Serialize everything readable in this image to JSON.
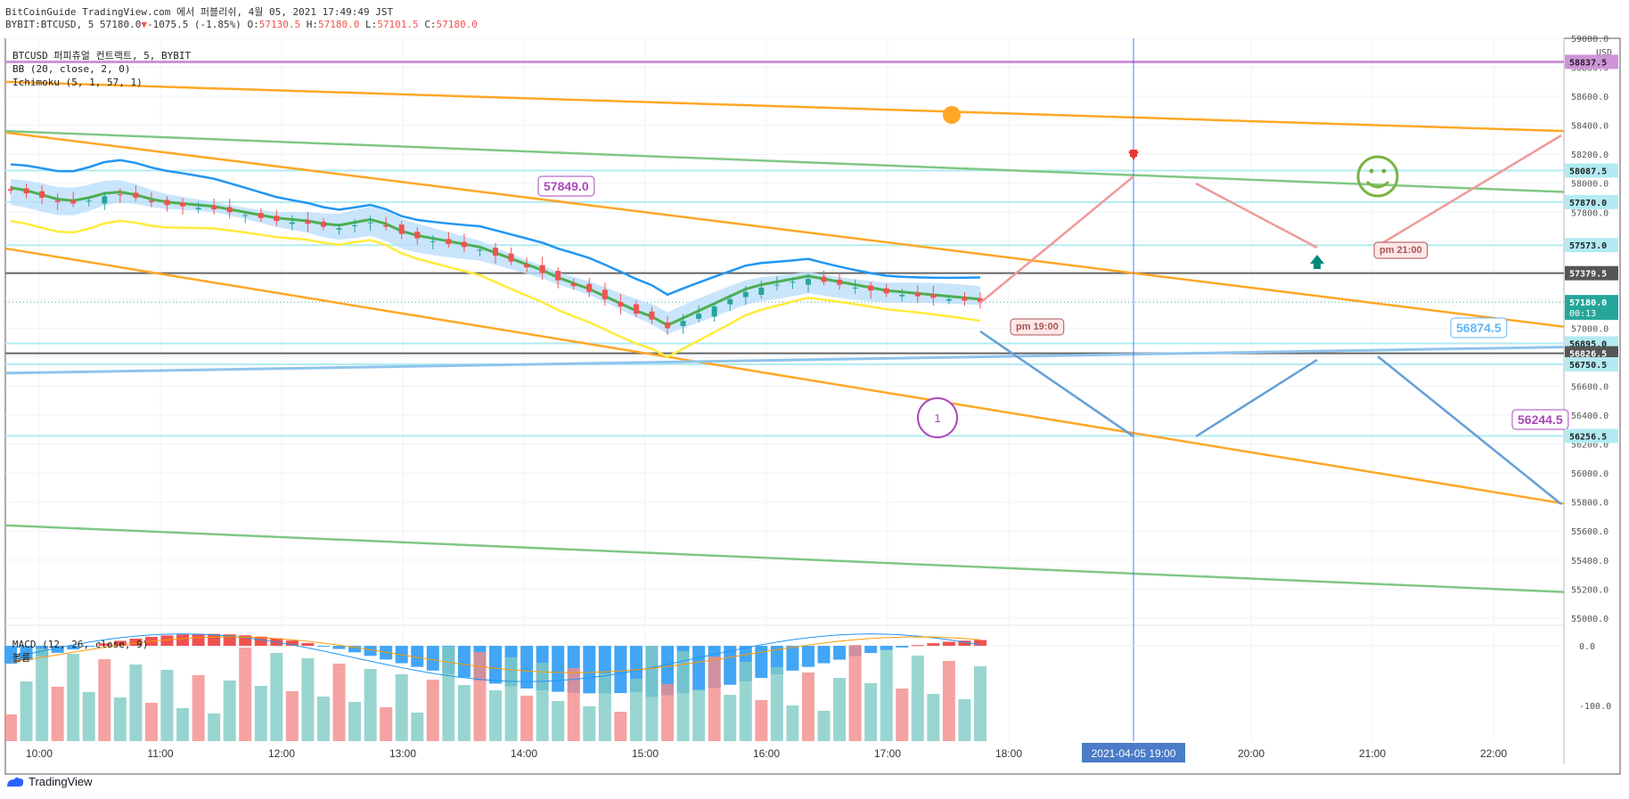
{
  "header": {
    "line1": "BitCoinGuide TradingView.com 에서 퍼블리쉬, 4월 05, 2021 17:49:49 JST",
    "symbol": "BYBIT:BTCUSD, 5 57180.0",
    "change": "-1075.5 (-1.85%)",
    "o_label": "O:",
    "o_value": "57130.5",
    "h_label": "H:",
    "h_value": "57180.0",
    "l_label": "L:",
    "l_value": "57101.5",
    "c_label": "C:",
    "c_value": "57180.0"
  },
  "legend": {
    "title": "BTCUSD 퍼피츄얼 컨트랙트, 5, BYBIT",
    "bb": "BB (20, close, 2, 0)",
    "ichimoku": "Ichimoku (5, 1, 57, 1)"
  },
  "macd_legend": {
    "title": "MACD (12, 26, close, 9)",
    "volume": "볼륨"
  },
  "footer": {
    "brand": "TradingView"
  },
  "colors": {
    "up": "#26a69a",
    "down": "#ef5350",
    "bb_upper": "#2196f3",
    "bb_lower": "#ffeb3b",
    "basis": "#4caf50",
    "orange": "#ffa726",
    "green_line": "#81c784",
    "marker_purple": "#ab47bc",
    "projection_up": "#ef9a9a",
    "projection_down": "#64a0d8"
  },
  "axis": {
    "usd": "USD"
  },
  "annotations": {
    "label_57849": "57849.0",
    "label_56874": "56874.5",
    "label_56244": "56244.5",
    "pm19": "pm 19:00",
    "pm21": "pm 21:00",
    "bubble_1": "1",
    "crosshair_date": "2021-04-05  19:00"
  },
  "chart_data": {
    "type": "candlestick",
    "ylim": [
      54950,
      59000
    ],
    "y_ticks": [
      55000,
      55200,
      55400,
      55600,
      55800,
      56000,
      56200,
      56400,
      56600,
      56800,
      57000,
      57200,
      57400,
      57600,
      57800,
      58000,
      58200,
      58400,
      58600,
      58800,
      59000
    ],
    "y_tick_labels": [
      "55000.0",
      "55200.0",
      "55400.0",
      "55600.0",
      "55800.0",
      "56000.0",
      "56200.0",
      "56400.0",
      "56600.0",
      "56800.0",
      "57000.0",
      "57200.0",
      "57400.0",
      "57600.0",
      "57800.0",
      "58000.0",
      "58200.0",
      "58400.0",
      "58600.0",
      "58800.0",
      "59000.0"
    ],
    "x_ticks": [
      "10:00",
      "11:00",
      "12:00",
      "13:00",
      "14:00",
      "15:00",
      "16:00",
      "17:00",
      "18:00",
      "20:00",
      "21:00",
      "22:00"
    ],
    "price_labels": [
      {
        "value": "58837.5",
        "color": "#ce93d8"
      },
      {
        "value": "58087.5",
        "color": "#b2ebf2"
      },
      {
        "value": "57870.0",
        "color": "#b2ebf2"
      },
      {
        "value": "57573.0",
        "color": "#b2ebf2"
      },
      {
        "value": "57379.5",
        "color": "#555555"
      },
      {
        "value": "57180.0",
        "color": "#26a69a",
        "sub": "00:13"
      },
      {
        "value": "56895.0",
        "color": "#b2ebf2"
      },
      {
        "value": "56826.5",
        "color": "#555555"
      },
      {
        "value": "56750.5",
        "color": "#b2ebf2"
      },
      {
        "value": "56256.5",
        "color": "#b2ebf2"
      }
    ],
    "close": [
      57950,
      57930,
      57900,
      57870,
      57860,
      57880,
      57910,
      57920,
      57900,
      57870,
      57850,
      57840,
      57830,
      57820,
      57800,
      57780,
      57760,
      57740,
      57730,
      57720,
      57700,
      57690,
      57710,
      57730,
      57700,
      57650,
      57620,
      57600,
      57580,
      57560,
      57540,
      57500,
      57460,
      57420,
      57380,
      57330,
      57290,
      57250,
      57200,
      57150,
      57100,
      57060,
      57000,
      57050,
      57100,
      57150,
      57200,
      57250,
      57280,
      57300,
      57320,
      57340,
      57320,
      57300,
      57280,
      57260,
      57240,
      57230,
      57220,
      57210,
      57200,
      57190,
      57180
    ],
    "macd_ylim": [
      -160,
      30
    ],
    "macd_ticks": [
      "0.0",
      "-100.0"
    ]
  }
}
